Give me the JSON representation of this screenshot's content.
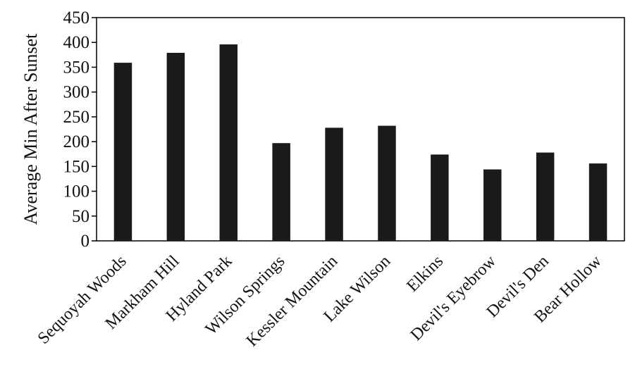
{
  "chart_data": {
    "type": "bar",
    "title": "",
    "xlabel": "",
    "ylabel": "Average Min After Sunset",
    "ylim": [
      0,
      450
    ],
    "yticks": [
      0,
      50,
      100,
      150,
      200,
      250,
      300,
      350,
      400,
      450
    ],
    "grid": false,
    "legend": "none",
    "bar_color": "#1a1a1a",
    "categories": [
      "Sequoyah Woods",
      "Markham Hill",
      "Hyland Park",
      "Wilson Springs",
      "Kessler Mountain",
      "Lake Wilson",
      "Elkins",
      "Devil's Eyebrow",
      "Devil's Den",
      "Bear Hollow"
    ],
    "values": [
      359,
      379,
      396,
      197,
      228,
      232,
      174,
      144,
      178,
      156
    ]
  }
}
